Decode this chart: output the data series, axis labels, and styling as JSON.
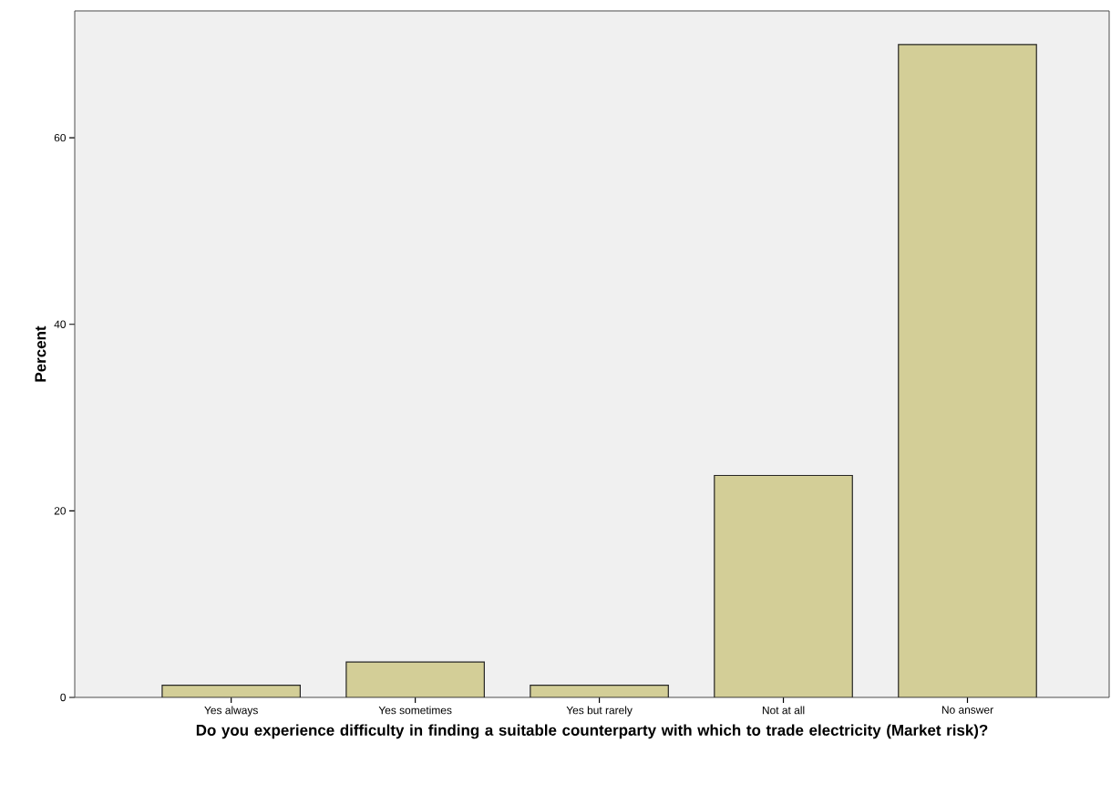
{
  "chart_data": {
    "type": "bar",
    "xlabel": "Do you experience difficulty in finding a suitable counterparty with which to trade electricity (Market risk)?",
    "ylabel": "Percent",
    "categories": [
      "Yes always",
      "Yes sometimes",
      "Yes but rarely",
      "Not at all",
      "No answer"
    ],
    "values": [
      1.3,
      3.8,
      1.3,
      23.8,
      70.0
    ],
    "color": "#d3ce97",
    "ylim": [
      0,
      73.6
    ],
    "yticks": [
      0,
      20,
      40,
      60
    ],
    "grid": false
  }
}
